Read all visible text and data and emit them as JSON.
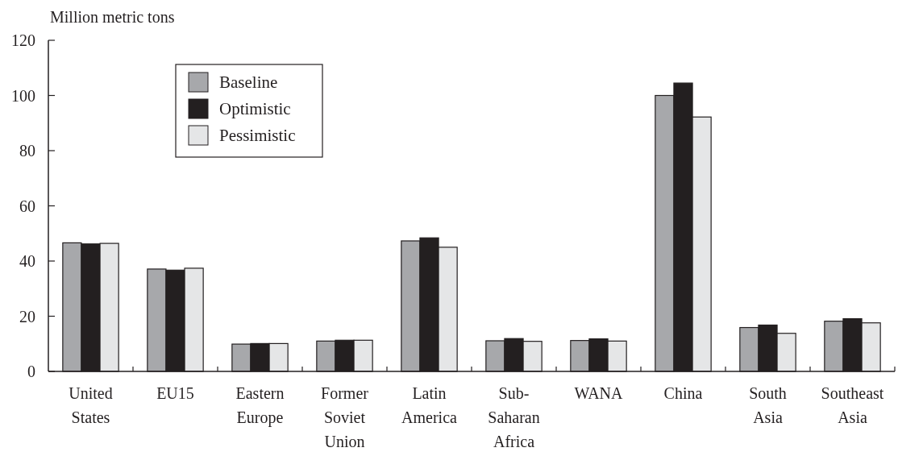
{
  "chart_data": {
    "type": "bar",
    "ylabel": "Million metric tons",
    "categories": [
      "United States",
      "EU15",
      "Eastern Europe",
      "Former Soviet Union",
      "Latin America",
      "Sub-Saharan Africa",
      "WANA",
      "China",
      "South Asia",
      "Southeast Asia"
    ],
    "series": [
      {
        "name": "Baseline",
        "color": "#a7a8ab",
        "values": [
          46.6,
          37.1,
          9.9,
          11.0,
          47.3,
          11.1,
          11.2,
          100.0,
          15.9,
          18.2
        ]
      },
      {
        "name": "Optimistic",
        "color": "#231f20",
        "values": [
          46.2,
          36.7,
          10.1,
          11.3,
          48.4,
          11.9,
          11.8,
          104.5,
          16.8,
          19.1
        ]
      },
      {
        "name": "Pessimistic",
        "color": "#e5e6e7",
        "values": [
          46.4,
          37.4,
          10.1,
          11.3,
          45.0,
          10.9,
          11.0,
          92.2,
          13.8,
          17.6
        ]
      }
    ],
    "ylim": [
      0,
      120
    ],
    "yticks": [
      0,
      20,
      40,
      60,
      80,
      100,
      120
    ],
    "grid": false,
    "legend": "top left"
  }
}
